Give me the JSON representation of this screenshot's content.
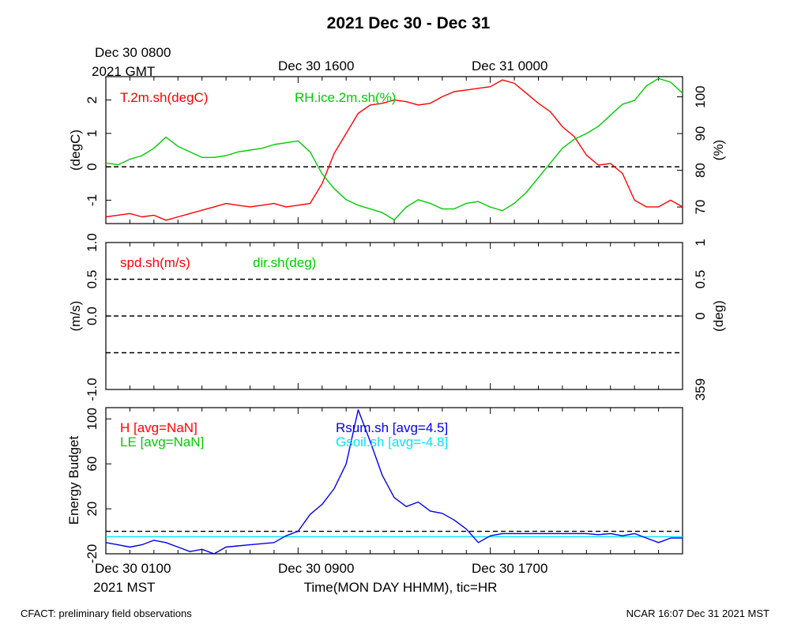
{
  "header": {
    "title": "2021 Dec 30 - Dec 31",
    "gmt_label_line1": "Dec 30 0800",
    "gmt_label_line2": "2021 GMT",
    "gmt_tick2": "Dec 30 1600",
    "gmt_tick3": "Dec 31 0000"
  },
  "footer": {
    "mst_label_line1": "Dec 30 0100",
    "mst_label_line2": "2021 MST",
    "mst_tick2": "Dec 30 0900",
    "mst_tick3": "Dec 30 1700",
    "xlabel": "Time(MON DAY HHMM), tic=HR",
    "left_note": "CFACT: preliminary field observations",
    "right_note": "NCAR 16:07 Dec 31 2021 MST"
  },
  "colors": {
    "red": "#ff0000",
    "green": "#00cc00",
    "blue": "#0000ee",
    "cyan": "#00e5ff",
    "black": "#000000"
  },
  "chart_data": [
    {
      "type": "line",
      "panel": "top",
      "x_unit": "hours since Dec 30 0100 MST",
      "xlim": [
        0,
        24
      ],
      "ylabel_left": "(degC)",
      "ylabel_right": "(%)",
      "ylim_left": [
        -1.7,
        2.7
      ],
      "ylim_right": [
        65.5,
        105.5
      ],
      "left_ticks": [
        "-1",
        "0",
        "1",
        "2"
      ],
      "left_tick_values": [
        -1,
        0,
        1,
        2
      ],
      "right_ticks": [
        "70",
        "80",
        "90",
        "100"
      ],
      "right_tick_values": [
        70,
        80,
        90,
        100
      ],
      "zero_line": 0,
      "series": [
        {
          "name": "T.2m.sh(degC)",
          "axis": "left",
          "color": "#ff0000",
          "x": [
            0,
            0.5,
            1,
            1.5,
            2,
            2.5,
            3,
            3.5,
            4,
            4.5,
            5,
            5.5,
            6,
            6.5,
            7,
            7.5,
            8,
            8.5,
            9,
            9.5,
            10,
            10.5,
            11,
            11.5,
            12,
            12.5,
            13,
            13.5,
            14,
            14.5,
            15,
            15.5,
            16,
            16.5,
            17,
            17.5,
            18,
            18.5,
            19,
            19.5,
            20,
            20.5,
            21,
            21.5,
            22,
            22.5,
            23,
            23.5,
            24
          ],
          "y": [
            -1.5,
            -1.45,
            -1.4,
            -1.5,
            -1.45,
            -1.6,
            -1.5,
            -1.4,
            -1.3,
            -1.2,
            -1.1,
            -1.15,
            -1.2,
            -1.15,
            -1.1,
            -1.2,
            -1.15,
            -1.1,
            -0.5,
            0.4,
            1.0,
            1.6,
            1.85,
            1.9,
            2.0,
            1.95,
            1.85,
            1.9,
            2.1,
            2.25,
            2.3,
            2.35,
            2.4,
            2.6,
            2.5,
            2.2,
            1.9,
            1.65,
            1.2,
            0.9,
            0.35,
            0.05,
            0.1,
            -0.2,
            -1.0,
            -1.2,
            -1.2,
            -1.0,
            -1.2
          ]
        },
        {
          "name": "RH.ice.2m.sh(%)",
          "axis": "right",
          "color": "#00cc00",
          "x": [
            0,
            0.5,
            1,
            1.5,
            2,
            2.5,
            3,
            3.5,
            4,
            4.5,
            5,
            5.5,
            6,
            6.5,
            7,
            7.5,
            8,
            8.5,
            9,
            9.5,
            10,
            10.5,
            11,
            11.5,
            12,
            12.5,
            13,
            13.5,
            14,
            14.5,
            15,
            15.5,
            16,
            16.5,
            17,
            17.5,
            18,
            18.5,
            19,
            19.5,
            20,
            20.5,
            21,
            21.5,
            22,
            22.5,
            23,
            23.5,
            24
          ],
          "y": [
            82,
            81.5,
            83,
            84,
            86,
            89,
            86.5,
            85,
            83.5,
            83.5,
            84,
            85,
            85.5,
            86,
            87,
            87.5,
            88,
            85,
            79,
            75,
            72,
            70.5,
            69.5,
            68.5,
            66.5,
            70,
            72,
            71,
            69.5,
            69.5,
            71,
            71.5,
            70,
            69,
            71,
            74,
            78,
            82,
            86,
            88.5,
            90,
            92,
            95,
            98,
            99,
            103,
            105,
            104,
            101
          ]
        }
      ]
    },
    {
      "type": "line",
      "panel": "middle",
      "xlim": [
        0,
        24
      ],
      "ylabel_left": "(m/s)",
      "ylabel_right": "(deg)",
      "ylim_left": [
        -1.0,
        1.0
      ],
      "left_ticks": [
        "-1.0",
        "0.0",
        "0.5",
        "1.0"
      ],
      "left_tick_values": [
        -1.0,
        0.0,
        0.5,
        1.0
      ],
      "right_ticks": [
        "359",
        "0",
        "0.5",
        "1"
      ],
      "right_tick_values": [
        -1.0,
        0.0,
        0.5,
        1.0
      ],
      "dashed_lines": [
        -0.5,
        0.0,
        0.5
      ],
      "series": [
        {
          "name": "spd.sh(m/s)",
          "axis": "left",
          "color": "#ff0000",
          "x": [],
          "y": []
        },
        {
          "name": "dir.sh(deg)",
          "axis": "right",
          "color": "#00cc00",
          "x": [],
          "y": []
        }
      ]
    },
    {
      "type": "line",
      "panel": "bottom",
      "xlim": [
        0,
        24
      ],
      "ylabel_left": "Energy Budget",
      "ylim_left": [
        -20,
        110
      ],
      "left_ticks": [
        "-20",
        "20",
        "60",
        "100"
      ],
      "left_tick_values": [
        -20,
        20,
        60,
        100
      ],
      "zero_line": 0,
      "series": [
        {
          "name": "H [avg=NaN]",
          "color": "#ff0000",
          "x": [],
          "y": []
        },
        {
          "name": "LE [avg=NaN]",
          "color": "#00cc00",
          "x": [],
          "y": []
        },
        {
          "name": "Rsum.sh [avg=4.5]",
          "color": "#0000ee",
          "x": [
            0,
            0.5,
            1,
            1.5,
            2,
            2.5,
            3,
            3.5,
            4,
            4.5,
            5,
            5.5,
            6,
            6.5,
            7,
            7.5,
            8,
            8.5,
            9,
            9.5,
            10,
            10.5,
            11,
            11.5,
            12,
            12.5,
            13,
            13.5,
            14,
            14.5,
            15,
            15.5,
            16,
            16.5,
            17,
            17.5,
            18,
            18.5,
            19,
            19.5,
            20,
            20.5,
            21,
            21.5,
            22,
            22.5,
            23,
            23.5,
            24
          ],
          "y": [
            -10,
            -12,
            -14,
            -12,
            -8,
            -10,
            -14,
            -18,
            -16,
            -20,
            -14,
            -13,
            -12,
            -11,
            -10,
            -4,
            0,
            15,
            24,
            38,
            60,
            108,
            80,
            50,
            30,
            22,
            26,
            18,
            16,
            10,
            2,
            -10,
            -4,
            -2,
            -2,
            -2,
            -2,
            -2,
            -2,
            -2,
            -2,
            -3,
            -2,
            -4,
            -2,
            -6,
            -10,
            -6,
            -6
          ]
        },
        {
          "name": "Gsoil.sh [avg=-4.8]",
          "color": "#00e5ff",
          "x": [
            0,
            24
          ],
          "y": [
            -4.8,
            -4.8
          ]
        }
      ]
    }
  ]
}
